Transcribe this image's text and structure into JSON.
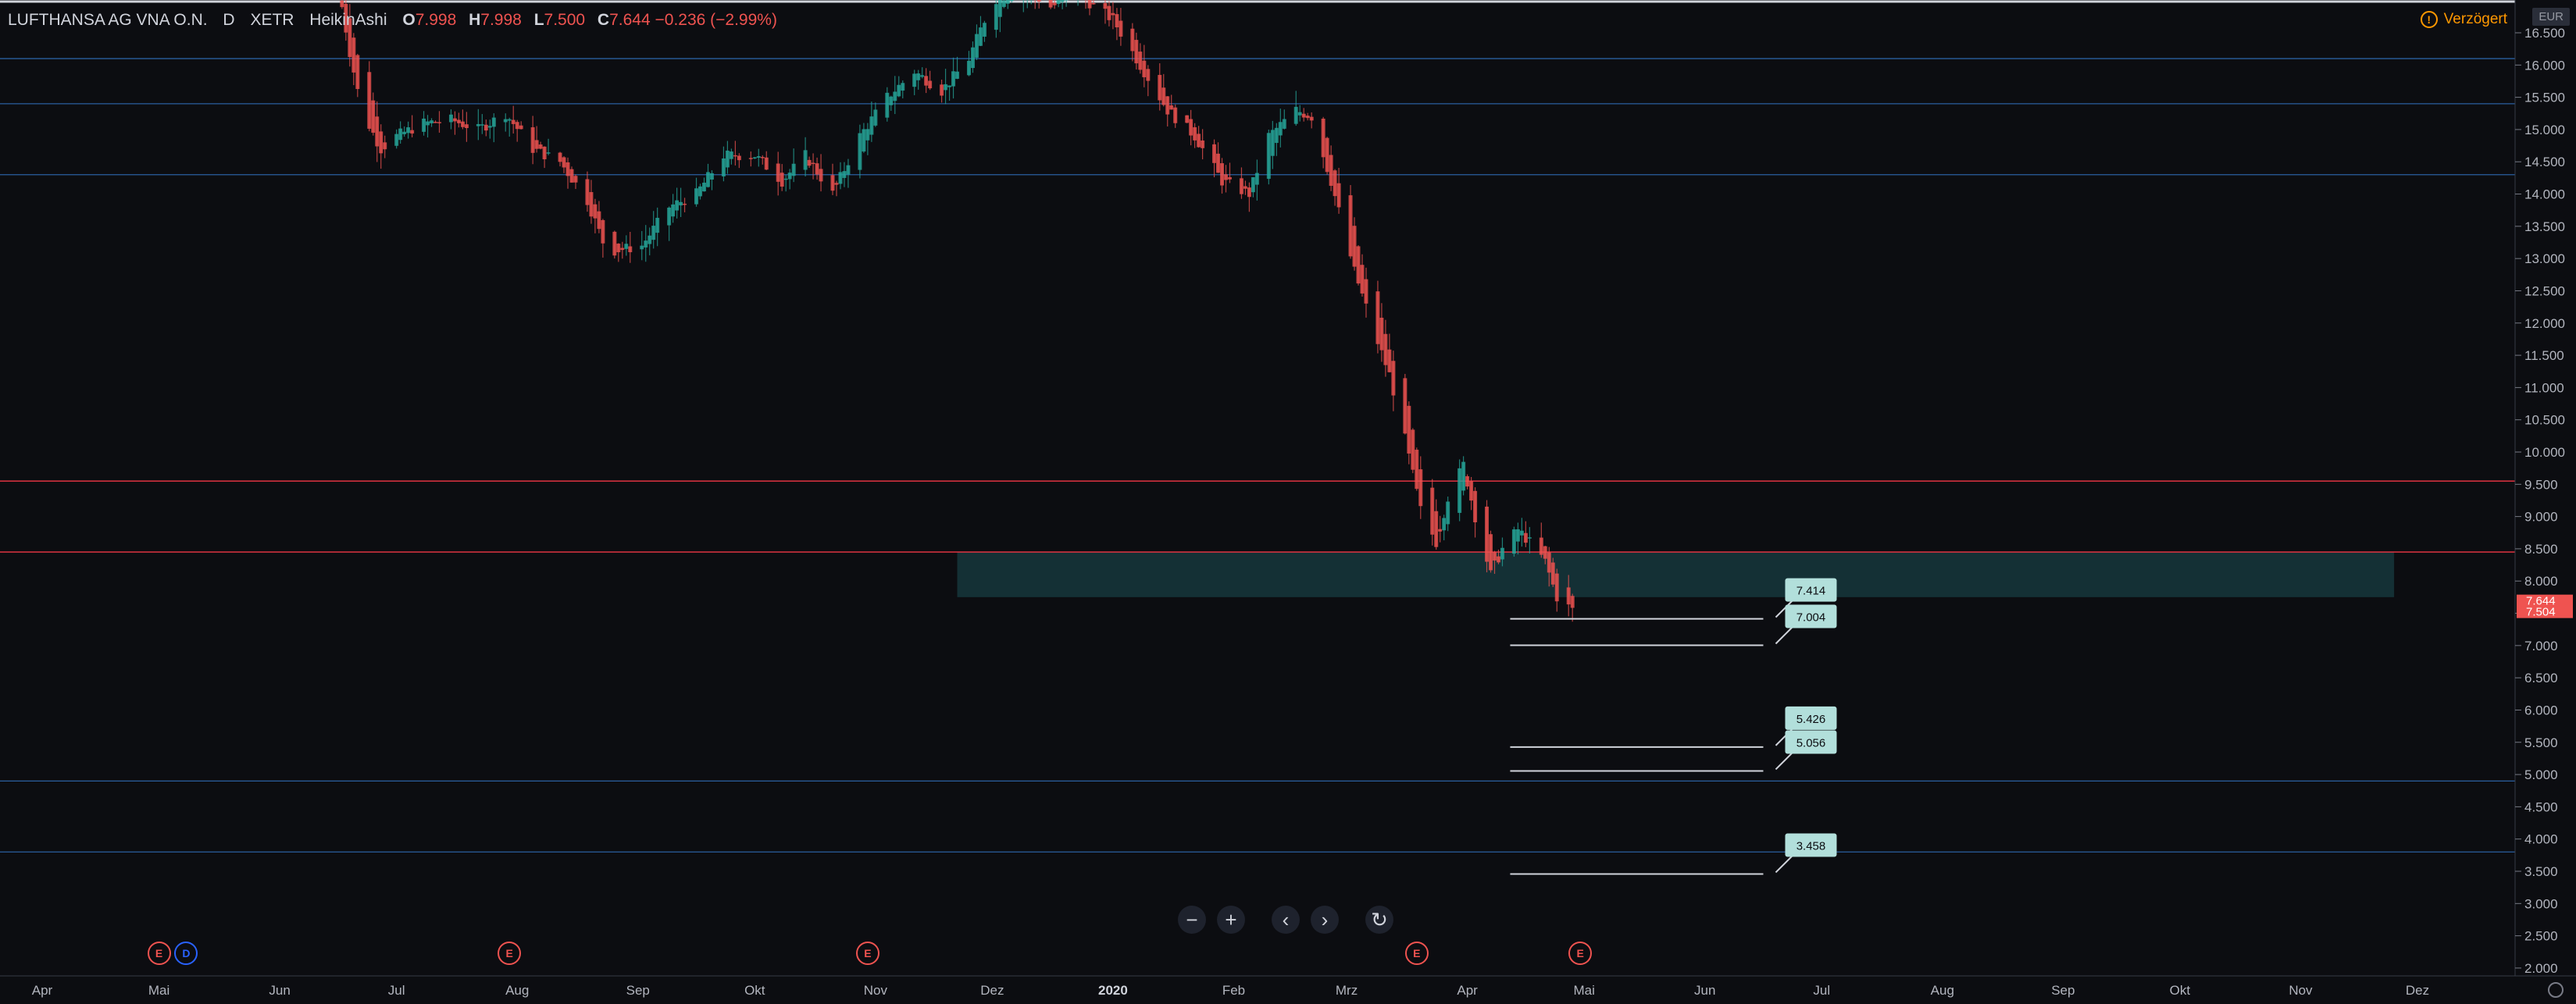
{
  "legend": {
    "symbol": "LUFTHANSA AG VNA O.N.",
    "interval": "D",
    "exchange": "XETR",
    "chart_style": "HeikinAshi",
    "open_key": "O",
    "open": "7.998",
    "high_key": "H",
    "high": "7.998",
    "low_key": "L",
    "low": "7.500",
    "close_key": "C",
    "close": "7.644",
    "change": "−0.236 (−2.99%)"
  },
  "delay_label": "Verzögert",
  "currency": "EUR",
  "last_price_labels": [
    "7.644",
    "7.504"
  ],
  "colors": {
    "up": "#26a69a",
    "down": "#ef5350",
    "background": "#0c0d11",
    "zone": "#1c4f53",
    "red_line": "#f23645",
    "blue_line": "#2a5fa0"
  },
  "toolbar": {
    "zoom_out": "−",
    "zoom_in": "+",
    "scroll_left": "‹",
    "scroll_right": "›",
    "reset": "↻"
  },
  "event_markers": [
    {
      "label": "E",
      "type": "earnings",
      "date": "2019-05-01"
    },
    {
      "label": "D",
      "type": "dividend",
      "date": "2019-05-08"
    },
    {
      "label": "E",
      "type": "earnings",
      "date": "2019-07-30"
    },
    {
      "label": "E",
      "type": "earnings",
      "date": "2019-10-30"
    },
    {
      "label": "E",
      "type": "earnings",
      "date": "2020-03-19"
    },
    {
      "label": "E",
      "type": "earnings",
      "date": "2020-04-30"
    }
  ],
  "chart_data": {
    "type": "candlestick",
    "title": "",
    "y_scale": "linear",
    "ylim": [
      2.0,
      16.8
    ],
    "xlim": [
      "2019-03-20",
      "2020-12-20"
    ],
    "y_ticks": [
      "16.500",
      "16.000",
      "15.500",
      "15.000",
      "14.500",
      "14.000",
      "13.500",
      "13.000",
      "12.500",
      "12.000",
      "11.500",
      "11.000",
      "10.500",
      "10.000",
      "9.500",
      "9.000",
      "8.500",
      "8.000",
      "7.500",
      "7.000",
      "6.500",
      "6.000",
      "5.500",
      "5.000",
      "4.500",
      "4.000",
      "3.500",
      "3.000",
      "2.500",
      "2.000"
    ],
    "x_ticks": [
      {
        "label": "Apr",
        "date": "2019-04-01"
      },
      {
        "label": "Mai",
        "date": "2019-05-01"
      },
      {
        "label": "Jun",
        "date": "2019-06-01"
      },
      {
        "label": "Jul",
        "date": "2019-07-01"
      },
      {
        "label": "Aug",
        "date": "2019-08-01"
      },
      {
        "label": "Sep",
        "date": "2019-09-01"
      },
      {
        "label": "Okt",
        "date": "2019-10-01"
      },
      {
        "label": "Nov",
        "date": "2019-11-01"
      },
      {
        "label": "Dez",
        "date": "2019-12-01"
      },
      {
        "label": "2020",
        "date": "2020-01-01",
        "bold": true
      },
      {
        "label": "Feb",
        "date": "2020-02-01"
      },
      {
        "label": "Mrz",
        "date": "2020-03-01"
      },
      {
        "label": "Apr",
        "date": "2020-04-01"
      },
      {
        "label": "Mai",
        "date": "2020-05-01"
      },
      {
        "label": "Jun",
        "date": "2020-06-01"
      },
      {
        "label": "Jul",
        "date": "2020-07-01"
      },
      {
        "label": "Aug",
        "date": "2020-08-01"
      },
      {
        "label": "Sep",
        "date": "2020-09-01"
      },
      {
        "label": "Okt",
        "date": "2020-10-01"
      },
      {
        "label": "Nov",
        "date": "2020-11-01"
      },
      {
        "label": "Dez",
        "date": "2020-12-01"
      }
    ],
    "price_path": [
      [
        "2019-06-17",
        16.9
      ],
      [
        "2019-06-19",
        16.2
      ],
      [
        "2019-06-22",
        15.3
      ],
      [
        "2019-06-27",
        14.7
      ],
      [
        "2019-07-01",
        14.9
      ],
      [
        "2019-07-08",
        15.1
      ],
      [
        "2019-07-15",
        15.15
      ],
      [
        "2019-07-22",
        15.0
      ],
      [
        "2019-07-29",
        15.25
      ],
      [
        "2019-08-05",
        14.7
      ],
      [
        "2019-08-12",
        14.5
      ],
      [
        "2019-08-19",
        13.9
      ],
      [
        "2019-08-24",
        13.1
      ],
      [
        "2019-09-02",
        13.2
      ],
      [
        "2019-09-09",
        13.8
      ],
      [
        "2019-09-16",
        14.0
      ],
      [
        "2019-09-23",
        14.6
      ],
      [
        "2019-10-01",
        14.6
      ],
      [
        "2019-10-08",
        14.2
      ],
      [
        "2019-10-14",
        14.6
      ],
      [
        "2019-10-21",
        14.0
      ],
      [
        "2019-10-28",
        14.9
      ],
      [
        "2019-11-04",
        15.5
      ],
      [
        "2019-11-11",
        15.9
      ],
      [
        "2019-11-18",
        15.6
      ],
      [
        "2019-11-25",
        16.1
      ],
      [
        "2019-12-01",
        17.0
      ],
      [
        "2019-12-09",
        17.2
      ],
      [
        "2019-12-16",
        16.9
      ],
      [
        "2019-12-23",
        17.1
      ],
      [
        "2020-01-01",
        16.7
      ],
      [
        "2020-01-08",
        16.0
      ],
      [
        "2020-01-15",
        15.3
      ],
      [
        "2020-01-22",
        14.9
      ],
      [
        "2020-01-29",
        14.2
      ],
      [
        "2020-02-05",
        14.0
      ],
      [
        "2020-02-10",
        14.9
      ],
      [
        "2020-02-17",
        15.3
      ],
      [
        "2020-02-21",
        15.2
      ],
      [
        "2020-02-26",
        14.2
      ],
      [
        "2020-03-03",
        12.8
      ],
      [
        "2020-03-09",
        11.7
      ],
      [
        "2020-03-12",
        11.2
      ],
      [
        "2020-03-16",
        10.2
      ],
      [
        "2020-03-20",
        9.1
      ],
      [
        "2020-03-24",
        8.6
      ],
      [
        "2020-03-27",
        9.3
      ],
      [
        "2020-03-31",
        9.8
      ],
      [
        "2020-04-03",
        9.0
      ],
      [
        "2020-04-07",
        8.1
      ],
      [
        "2020-04-10",
        8.5
      ],
      [
        "2020-04-14",
        8.8
      ],
      [
        "2020-04-17",
        8.6
      ],
      [
        "2020-04-21",
        8.3
      ],
      [
        "2020-04-24",
        7.75
      ],
      [
        "2020-04-28",
        7.55
      ]
    ],
    "horizontal_lines": [
      {
        "price": 16.1,
        "color": "blue"
      },
      {
        "price": 15.4,
        "color": "blue"
      },
      {
        "price": 14.3,
        "color": "blue"
      },
      {
        "price": 9.55,
        "color": "red"
      },
      {
        "price": 8.45,
        "color": "red"
      },
      {
        "price": 4.9,
        "color": "blue"
      },
      {
        "price": 3.8,
        "color": "blue"
      }
    ],
    "zone": {
      "from": "2019-11-22",
      "to": "2020-11-25",
      "low": 7.75,
      "high": 8.45
    },
    "price_labels": [
      {
        "price": 7.414,
        "label": "7.414"
      },
      {
        "price": 7.004,
        "label": "7.004"
      },
      {
        "price": 5.426,
        "label": "5.426"
      },
      {
        "price": 5.056,
        "label": "5.056"
      },
      {
        "price": 3.458,
        "label": "3.458"
      }
    ],
    "target_lines_from": "2020-04-12",
    "target_lines_to": "2020-06-16"
  }
}
